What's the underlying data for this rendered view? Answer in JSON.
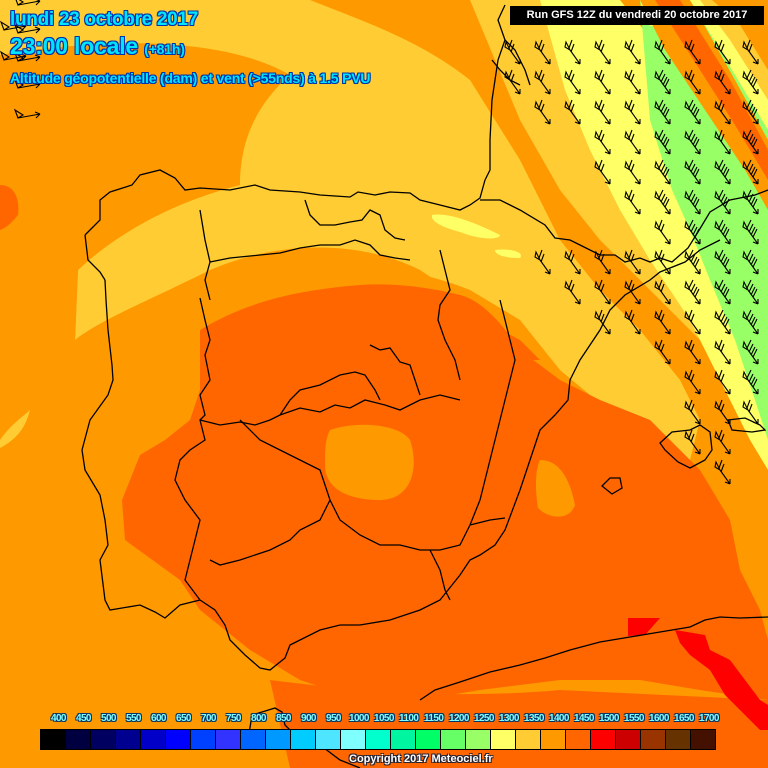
{
  "header": {
    "date": "lundi 23 octobre 2017",
    "time": "23:00 locale",
    "lead": "(+81h)",
    "parameter": "Altitude géopotentielle (dam) et vent (>55nds) à 1.5 PVU",
    "run": "Run GFS 12Z du vendredi 20 octobre 2017"
  },
  "legend": {
    "unit": "dam",
    "items": [
      {
        "label": "400",
        "color": "#000000"
      },
      {
        "label": "450",
        "color": "#000040"
      },
      {
        "label": "500",
        "color": "#000060"
      },
      {
        "label": "550",
        "color": "#000090"
      },
      {
        "label": "600",
        "color": "#0000c8"
      },
      {
        "label": "650",
        "color": "#0000ff"
      },
      {
        "label": "700",
        "color": "#0040ff"
      },
      {
        "label": "750",
        "color": "#3333ff"
      },
      {
        "label": "800",
        "color": "#0066ff"
      },
      {
        "label": "850",
        "color": "#0099ff"
      },
      {
        "label": "900",
        "color": "#00ccff"
      },
      {
        "label": "950",
        "color": "#4de5ff"
      },
      {
        "label": "1000",
        "color": "#80ffff"
      },
      {
        "label": "1050",
        "color": "#00ffcc"
      },
      {
        "label": "1100",
        "color": "#00f5a0"
      },
      {
        "label": "1150",
        "color": "#00ff66"
      },
      {
        "label": "1200",
        "color": "#66ff66"
      },
      {
        "label": "1250",
        "color": "#99ff66"
      },
      {
        "label": "1300",
        "color": "#ffff66"
      },
      {
        "label": "1350",
        "color": "#ffcc33"
      },
      {
        "label": "1400",
        "color": "#ff9900"
      },
      {
        "label": "1450",
        "color": "#ff6600"
      },
      {
        "label": "1500",
        "color": "#ff0000"
      },
      {
        "label": "1550",
        "color": "#cc0000"
      },
      {
        "label": "1600",
        "color": "#993300"
      },
      {
        "label": "1650",
        "color": "#663300"
      },
      {
        "label": "1700",
        "color": "#441100"
      }
    ]
  },
  "map": {
    "region": "Péninsule Ibérique",
    "field_colors": {
      "c1250": "#99ff66",
      "c1300": "#ffff66",
      "c1350": "#ffcc33",
      "c1400": "#ff9900",
      "c1450": "#ff6600",
      "c1500": "#ff0000"
    }
  },
  "footer": {
    "copyright": "Copyright 2017 Meteociel.fr"
  }
}
